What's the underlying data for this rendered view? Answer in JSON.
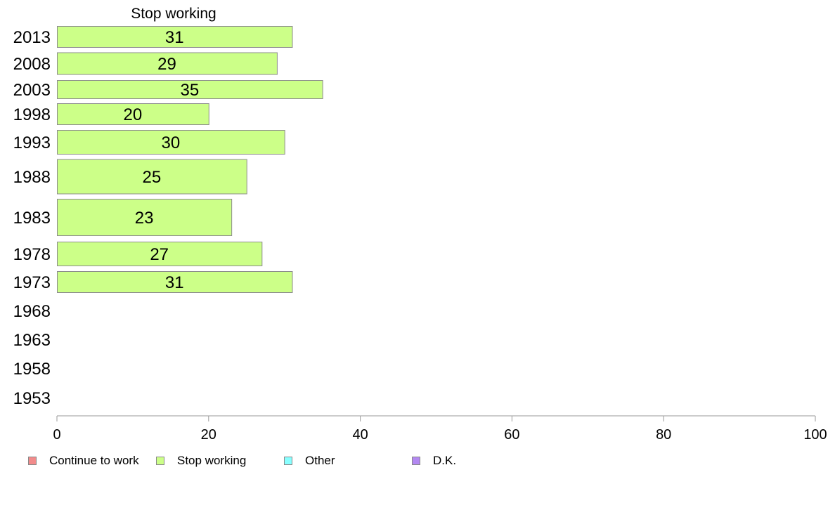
{
  "chart_data": {
    "type": "bar",
    "orientation": "horizontal",
    "stacked": true,
    "series_header": "Stop working",
    "categories": [
      "2013",
      "2008",
      "2003",
      "1998",
      "1993",
      "1988",
      "1983",
      "1978",
      "1973",
      "1968",
      "1963",
      "1958",
      "1953"
    ],
    "series": [
      {
        "name": "Continue to work",
        "color": "#f28b8b",
        "values": [
          null,
          null,
          null,
          null,
          null,
          null,
          null,
          null,
          null,
          null,
          null,
          null,
          null
        ]
      },
      {
        "name": "Stop working",
        "color": "#ccff88",
        "values": [
          31,
          29,
          35,
          20,
          30,
          25,
          23,
          27,
          31,
          null,
          null,
          null,
          null
        ]
      },
      {
        "name": "Other",
        "color": "#88ffff",
        "values": [
          null,
          null,
          null,
          null,
          null,
          null,
          null,
          null,
          null,
          null,
          null,
          null,
          null
        ]
      },
      {
        "name": "D.K.",
        "color": "#b388f2",
        "values": [
          null,
          null,
          null,
          null,
          null,
          null,
          null,
          null,
          null,
          null,
          null,
          null,
          null
        ]
      }
    ],
    "xlim": [
      0,
      100
    ],
    "xticks": [
      "0",
      "20",
      "40",
      "60",
      "80",
      "100"
    ],
    "legend_position": "bottom-left",
    "grid": false
  }
}
